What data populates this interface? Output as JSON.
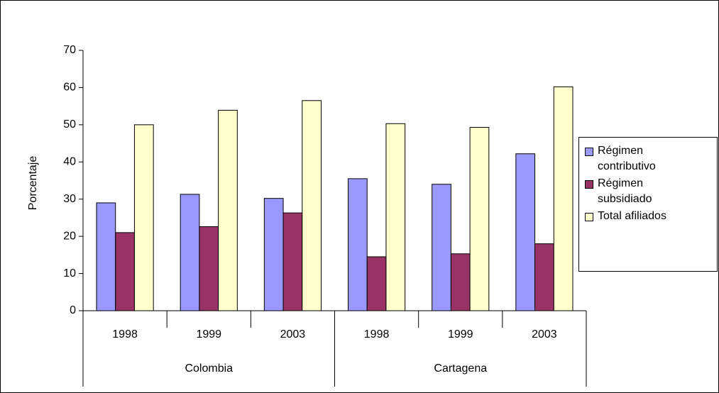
{
  "chart_data": {
    "type": "bar",
    "y_label": "Porcentaje",
    "groups": [
      {
        "name": "Colombia",
        "categories": [
          "1998",
          "1999",
          "2003"
        ]
      },
      {
        "name": "Cartagena",
        "categories": [
          "1998",
          "1999",
          "2003"
        ]
      }
    ],
    "series": [
      {
        "name": "Régimen contributivo",
        "color": "#9999ff",
        "values": [
          29,
          31.3,
          30.2,
          35.5,
          34,
          42.2
        ]
      },
      {
        "name": "Régimen subsidiado",
        "color": "#993366",
        "values": [
          21,
          22.6,
          26.3,
          14.5,
          15.3,
          18
        ]
      },
      {
        "name": "Total afiliados",
        "color": "#ffffcc",
        "values": [
          50,
          53.9,
          56.5,
          50.3,
          49.3,
          60.2
        ]
      }
    ],
    "ylim": [
      0,
      70
    ],
    "yticks": [
      0,
      10,
      20,
      30,
      40,
      50,
      60,
      70
    ],
    "grid": false
  }
}
